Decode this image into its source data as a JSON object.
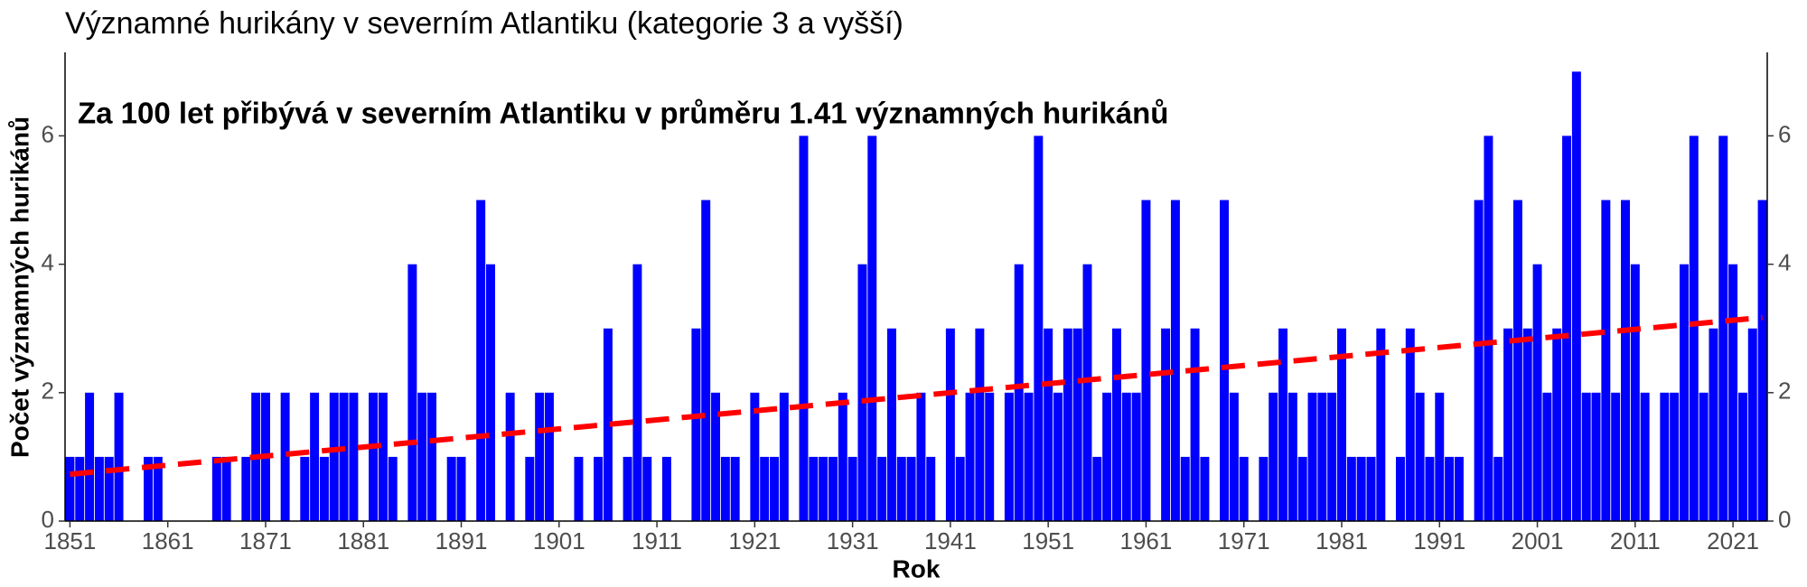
{
  "chart_data": {
    "type": "bar",
    "title": "Významné hurikány v severním Atlantiku (kategorie 3 a vyšší)",
    "annotation": "Za 100 let přibývá v severním Atlantiku v průměru 1.41 významných hurikánů",
    "x_label": "Rok",
    "y_label": "Počet významných hurikánů",
    "color": "#0000ff",
    "x": [
      1851,
      1852,
      1853,
      1854,
      1855,
      1856,
      1857,
      1858,
      1859,
      1860,
      1861,
      1862,
      1863,
      1864,
      1865,
      1866,
      1867,
      1868,
      1869,
      1870,
      1871,
      1872,
      1873,
      1874,
      1875,
      1876,
      1877,
      1878,
      1879,
      1880,
      1881,
      1882,
      1883,
      1884,
      1885,
      1886,
      1887,
      1888,
      1889,
      1890,
      1891,
      1892,
      1893,
      1894,
      1895,
      1896,
      1897,
      1898,
      1899,
      1900,
      1901,
      1902,
      1903,
      1904,
      1905,
      1906,
      1907,
      1908,
      1909,
      1910,
      1911,
      1912,
      1913,
      1914,
      1915,
      1916,
      1917,
      1918,
      1919,
      1920,
      1921,
      1922,
      1923,
      1924,
      1925,
      1926,
      1927,
      1928,
      1929,
      1930,
      1931,
      1932,
      1933,
      1934,
      1935,
      1936,
      1937,
      1938,
      1939,
      1940,
      1941,
      1942,
      1943,
      1944,
      1945,
      1946,
      1947,
      1948,
      1949,
      1950,
      1951,
      1952,
      1953,
      1954,
      1955,
      1956,
      1957,
      1958,
      1959,
      1960,
      1961,
      1962,
      1963,
      1964,
      1965,
      1966,
      1967,
      1968,
      1969,
      1970,
      1971,
      1972,
      1973,
      1974,
      1975,
      1976,
      1977,
      1978,
      1979,
      1980,
      1981,
      1982,
      1983,
      1984,
      1985,
      1986,
      1987,
      1988,
      1989,
      1990,
      1991,
      1992,
      1993,
      1994,
      1995,
      1996,
      1997,
      1998,
      1999,
      2000,
      2001,
      2002,
      2003,
      2004,
      2005,
      2006,
      2007,
      2008,
      2009,
      2010,
      2011,
      2012,
      2013,
      2014,
      2015,
      2016,
      2017,
      2018,
      2019,
      2020,
      2021,
      2022,
      2023,
      2024
    ],
    "values": [
      1,
      1,
      2,
      1,
      1,
      2,
      0,
      0,
      1,
      1,
      0,
      0,
      0,
      0,
      0,
      1,
      1,
      0,
      1,
      2,
      2,
      0,
      2,
      0,
      1,
      2,
      1,
      2,
      2,
      2,
      0,
      2,
      2,
      1,
      0,
      4,
      2,
      2,
      0,
      1,
      1,
      0,
      5,
      4,
      0,
      2,
      0,
      1,
      2,
      2,
      0,
      0,
      1,
      0,
      1,
      3,
      0,
      1,
      4,
      1,
      0,
      1,
      0,
      0,
      3,
      5,
      2,
      1,
      1,
      0,
      2,
      1,
      1,
      2,
      0,
      6,
      1,
      1,
      1,
      2,
      1,
      4,
      6,
      1,
      3,
      1,
      1,
      2,
      1,
      0,
      3,
      1,
      2,
      3,
      2,
      0,
      2,
      4,
      2,
      6,
      3,
      2,
      3,
      3,
      4,
      1,
      2,
      3,
      2,
      2,
      5,
      0,
      3,
      5,
      1,
      3,
      1,
      0,
      5,
      2,
      1,
      0,
      1,
      2,
      3,
      2,
      1,
      2,
      2,
      2,
      3,
      1,
      1,
      1,
      3,
      0,
      1,
      3,
      2,
      1,
      2,
      1,
      1,
      0,
      5,
      6,
      1,
      3,
      5,
      3,
      4,
      2,
      3,
      6,
      7,
      2,
      2,
      5,
      2,
      5,
      4,
      2,
      0,
      2,
      2,
      4,
      6,
      2,
      3,
      6,
      4,
      2,
      3,
      5
    ],
    "trend": {
      "color": "#ff0000",
      "x": [
        1851,
        2024
      ],
      "values": [
        0.73,
        3.17
      ]
    },
    "xlim": [
      1850.5,
      2024.5
    ],
    "xticks": [
      1851,
      1861,
      1871,
      1881,
      1891,
      1901,
      1911,
      1921,
      1931,
      1941,
      1951,
      1961,
      1971,
      1981,
      1991,
      2001,
      2011,
      2021
    ],
    "ylim": [
      0,
      7.3
    ],
    "yticks": [
      0,
      2,
      4,
      6
    ]
  }
}
